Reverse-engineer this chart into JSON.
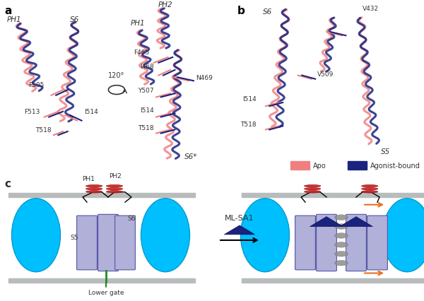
{
  "panel_a_label": "a",
  "panel_b_label": "b",
  "panel_c_label": "c",
  "apo_color": "#F08080",
  "agonist_color": "#1a237e",
  "cyan_color": "#00BFFF",
  "lavender_color": "#B0B0D8",
  "red_color": "#CC2222",
  "gray_color": "#909090",
  "green_color": "#228B22",
  "orange_color": "#E87020",
  "membrane_color": "#B8BCBC",
  "background": "#ffffff",
  "legend_apo": "Apo",
  "legend_agonist": "Agonist-bound",
  "mlsa1_label": "ML-SA1",
  "lower_gate_label": "Lower gate",
  "ph1_label": "PH1",
  "ph2_label": "PH2",
  "s5_label": "S5",
  "s6_label": "S6"
}
